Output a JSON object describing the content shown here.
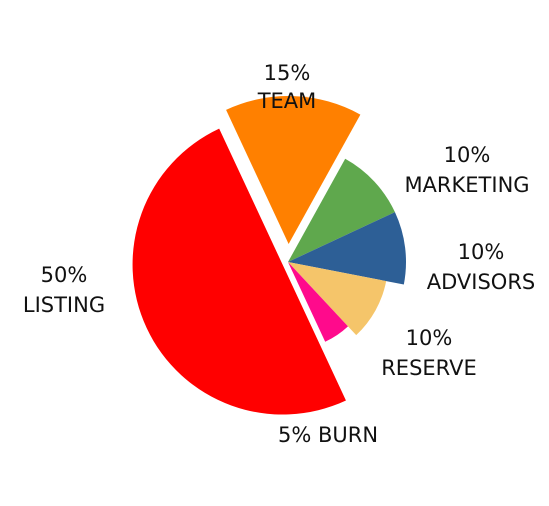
{
  "chart_data": {
    "type": "pie",
    "title": "",
    "slices": [
      {
        "pct_label": "15%",
        "name": "TEAM",
        "value": 15,
        "color": "#FF8000"
      },
      {
        "pct_label": "10%",
        "name": "MARKETING",
        "value": 10,
        "color": "#5FA84D"
      },
      {
        "pct_label": "10%",
        "name": "ADVISORS",
        "value": 10,
        "color": "#2D5F96"
      },
      {
        "pct_label": "10%",
        "name": "RESERVE",
        "value": 10,
        "color": "#F5C56A"
      },
      {
        "pct_label": "5%",
        "name": "BURN",
        "value": 5,
        "color": "#FF0A8C"
      },
      {
        "pct_label": "50%",
        "name": "LISTING",
        "value": 50,
        "color": "#FF0000"
      }
    ]
  }
}
